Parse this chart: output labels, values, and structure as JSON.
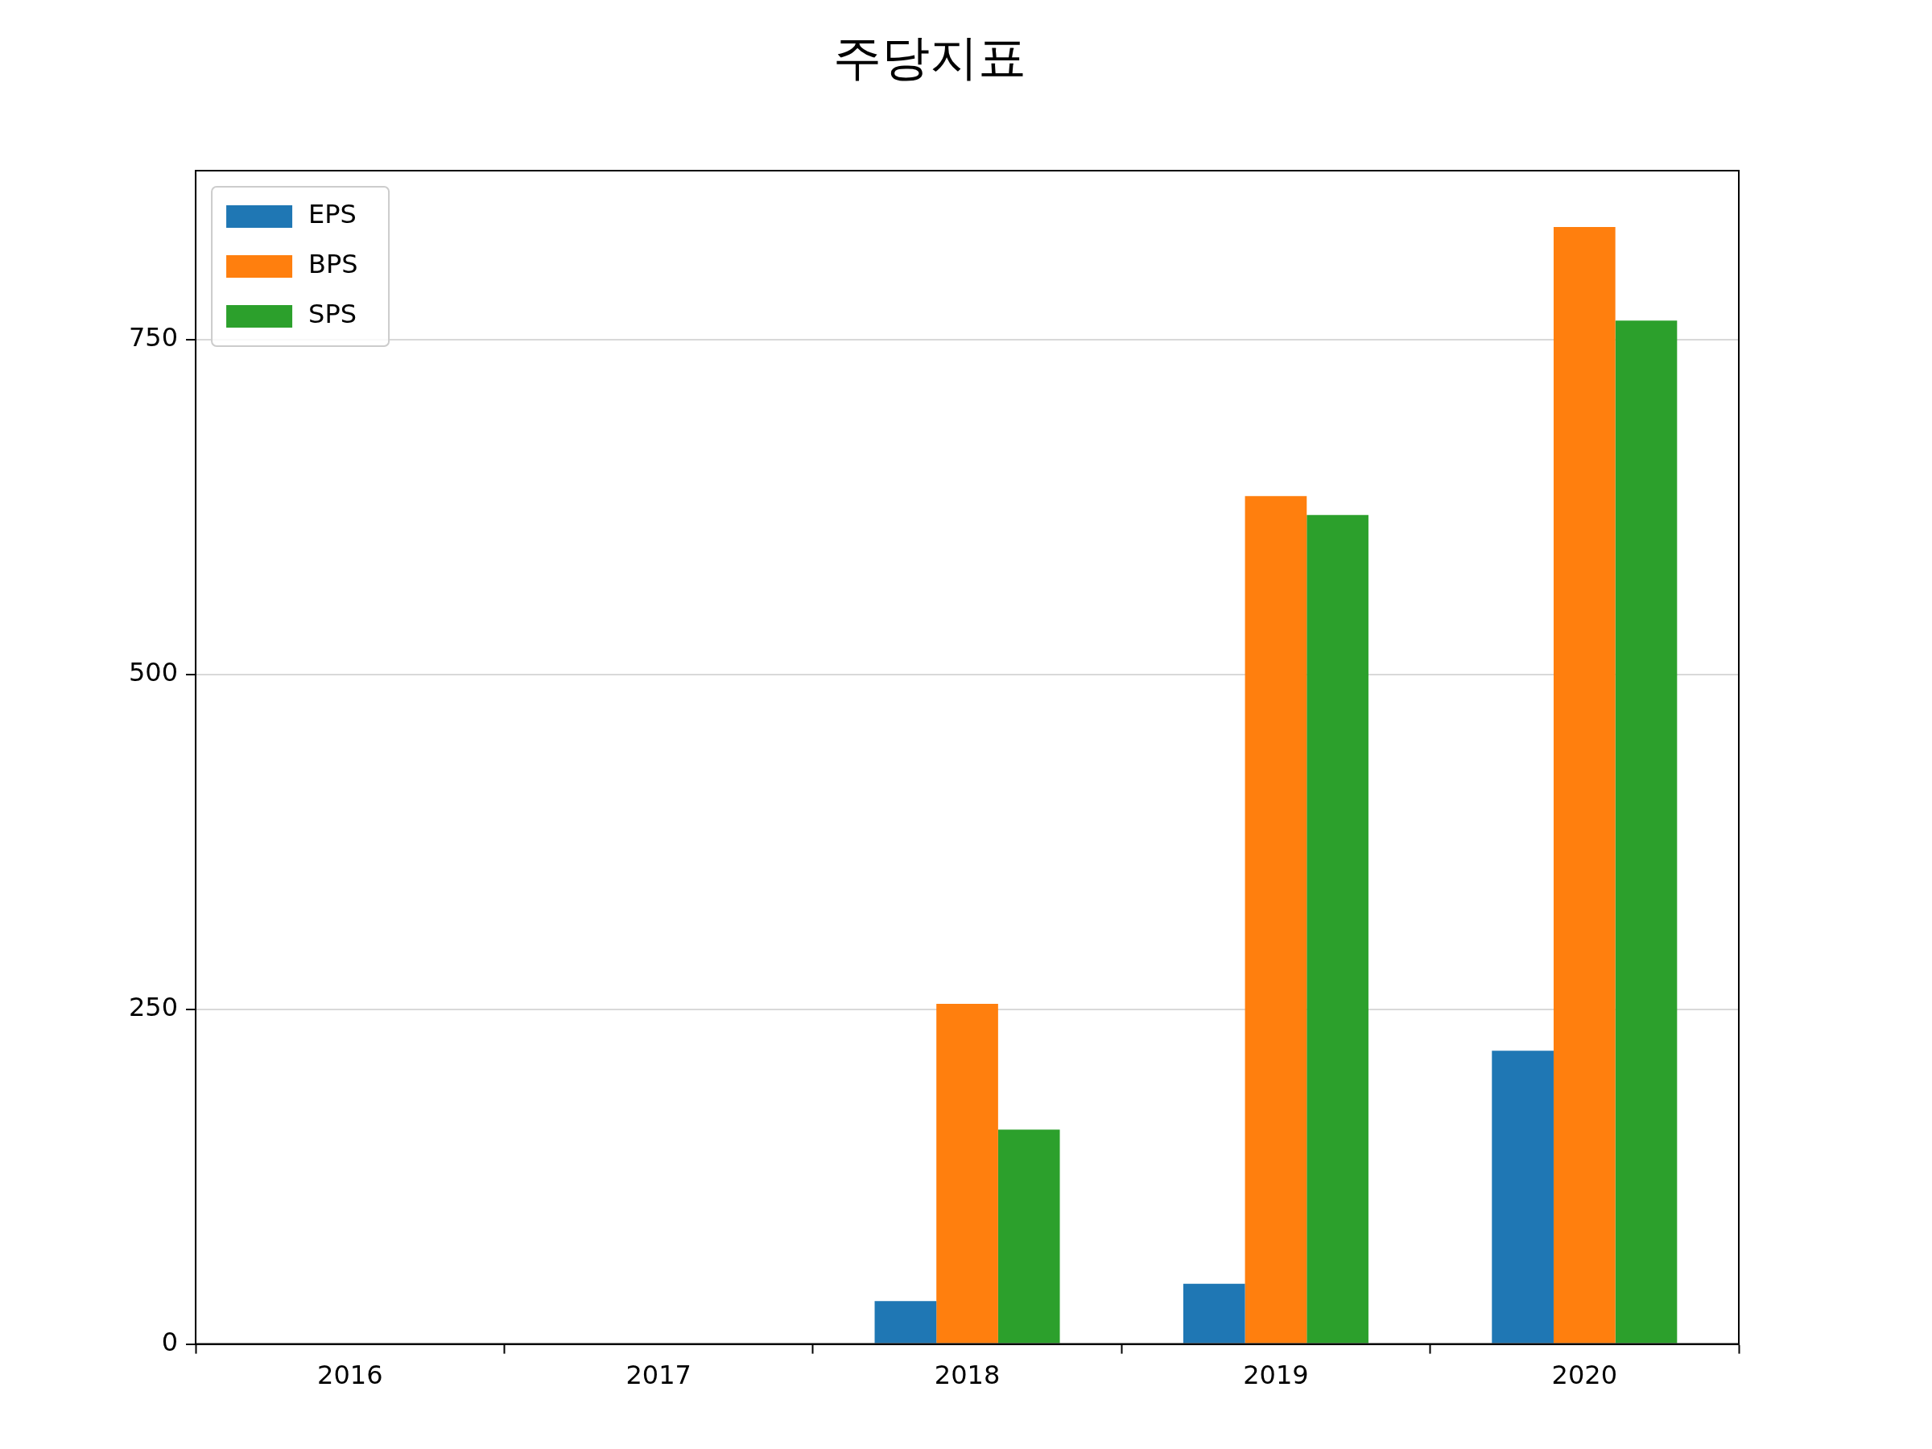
{
  "chart_data": {
    "type": "bar",
    "title": "주당지표",
    "categories": [
      "2016",
      "2017",
      "2018",
      "2019",
      "2020"
    ],
    "series": [
      {
        "name": "EPS",
        "color": "#1f77b4",
        "values": [
          0,
          0,
          32,
          45,
          219
        ]
      },
      {
        "name": "BPS",
        "color": "#ff7f0e",
        "values": [
          0,
          0,
          254,
          633,
          834
        ]
      },
      {
        "name": "SPS",
        "color": "#2ca02c",
        "values": [
          0,
          0,
          160,
          619,
          764
        ]
      }
    ],
    "ylim": [
      0,
      876
    ],
    "yticks": [
      0,
      250,
      500,
      750
    ],
    "grid": "y",
    "legend": "top left"
  }
}
